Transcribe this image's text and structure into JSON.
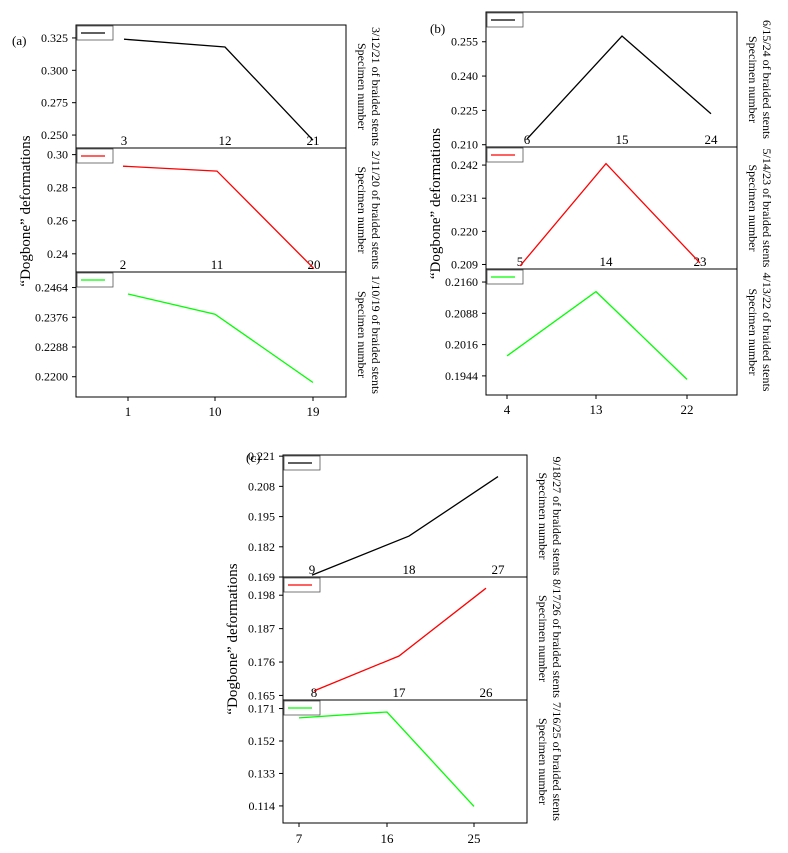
{
  "y_label": "“Dogbone” deformations",
  "chart_data": [
    {
      "panel": "(a)",
      "type": "line",
      "subplots": [
        {
          "series": "3/12/21",
          "color": "#000000",
          "x": [
            "3",
            "12",
            "21"
          ],
          "values": [
            0.324,
            0.318,
            0.246
          ],
          "yticks": [
            "0.325",
            "0.300",
            "0.275",
            "0.250"
          ],
          "ylim": [
            0.24,
            0.335
          ],
          "side_label": [
            "Specimen number",
            "3/12/21 of braided stents"
          ]
        },
        {
          "series": "2/11/20",
          "color": "#ff0000",
          "x": [
            "2",
            "11",
            "20"
          ],
          "values": [
            0.293,
            0.29,
            0.231
          ],
          "yticks": [
            "0.30",
            "0.28",
            "0.26",
            "0.24"
          ],
          "ylim": [
            0.229,
            0.304
          ],
          "side_label": [
            "Specimen number",
            "2/11/20 of braided stents"
          ]
        },
        {
          "series": "1/10/19",
          "color": "#00ff00",
          "x": [
            "1",
            "10",
            "19"
          ],
          "values": [
            0.2445,
            0.2385,
            0.2183
          ],
          "yticks": [
            "0.2464",
            "0.2376",
            "0.2288",
            "0.2200"
          ],
          "ylim": [
            0.214,
            0.251
          ],
          "side_label": [
            "Specimen number",
            "1/10/19 of braided stents"
          ]
        }
      ]
    },
    {
      "panel": "(b)",
      "type": "line",
      "subplots": [
        {
          "series": "6/15/24",
          "color": "#000000",
          "x": [
            "6",
            "15",
            "24"
          ],
          "values": [
            0.2125,
            0.2575,
            0.2235
          ],
          "yticks": [
            "0.255",
            "0.240",
            "0.225",
            "0.210"
          ],
          "ylim": [
            0.209,
            0.268
          ],
          "side_label": [
            "Specimen number",
            "6/15/24 of braided stents"
          ]
        },
        {
          "series": "5/14/23",
          "color": "#ff0000",
          "x": [
            "5",
            "14",
            "23"
          ],
          "values": [
            0.2085,
            0.2425,
            0.2095
          ],
          "yticks": [
            "0.242",
            "0.231",
            "0.220",
            "0.209"
          ],
          "ylim": [
            0.2075,
            0.248
          ],
          "side_label": [
            "Specimen number",
            "5/14/23 of braided stents"
          ]
        },
        {
          "series": "4/13/22",
          "color": "#00ff00",
          "x": [
            "4",
            "13",
            "22"
          ],
          "values": [
            0.199,
            0.2138,
            0.1936
          ],
          "yticks": [
            "0.2160",
            "0.2088",
            "0.2016",
            "0.1944"
          ],
          "ylim": [
            0.19,
            0.219
          ],
          "side_label": [
            "Specimen number",
            "4/13/22 of braided stents"
          ]
        }
      ]
    },
    {
      "panel": "(c)",
      "type": "line",
      "subplots": [
        {
          "series": "9/18/27",
          "color": "#000000",
          "x": [
            "9",
            "18",
            "27"
          ],
          "values": [
            0.1698,
            0.1866,
            0.2122
          ],
          "yticks": [
            "0.221",
            "0.208",
            "0.195",
            "0.182",
            "0.169"
          ],
          "ylim": [
            0.169,
            0.2215
          ],
          "side_label": [
            "Specimen number",
            "9/18/27 of braided stents"
          ]
        },
        {
          "series": "8/17/26",
          "color": "#ff0000",
          "x": [
            "8",
            "17",
            "26"
          ],
          "values": [
            0.1665,
            0.178,
            0.2003
          ],
          "yticks": [
            "0.198",
            "0.187",
            "0.176",
            "0.165"
          ],
          "ylim": [
            0.1635,
            0.204
          ],
          "side_label": [
            "Specimen number",
            "8/17/26 of braided stents"
          ]
        },
        {
          "series": "7/16/25",
          "color": "#00ff00",
          "x": [
            "7",
            "16",
            "25"
          ],
          "values": [
            0.1655,
            0.169,
            0.1137
          ],
          "yticks": [
            "0.171",
            "0.152",
            "0.133",
            "0.114"
          ],
          "ylim": [
            0.104,
            0.176
          ],
          "side_label": [
            "Specimen number",
            "7/16/25 of braided stents"
          ]
        }
      ]
    }
  ]
}
